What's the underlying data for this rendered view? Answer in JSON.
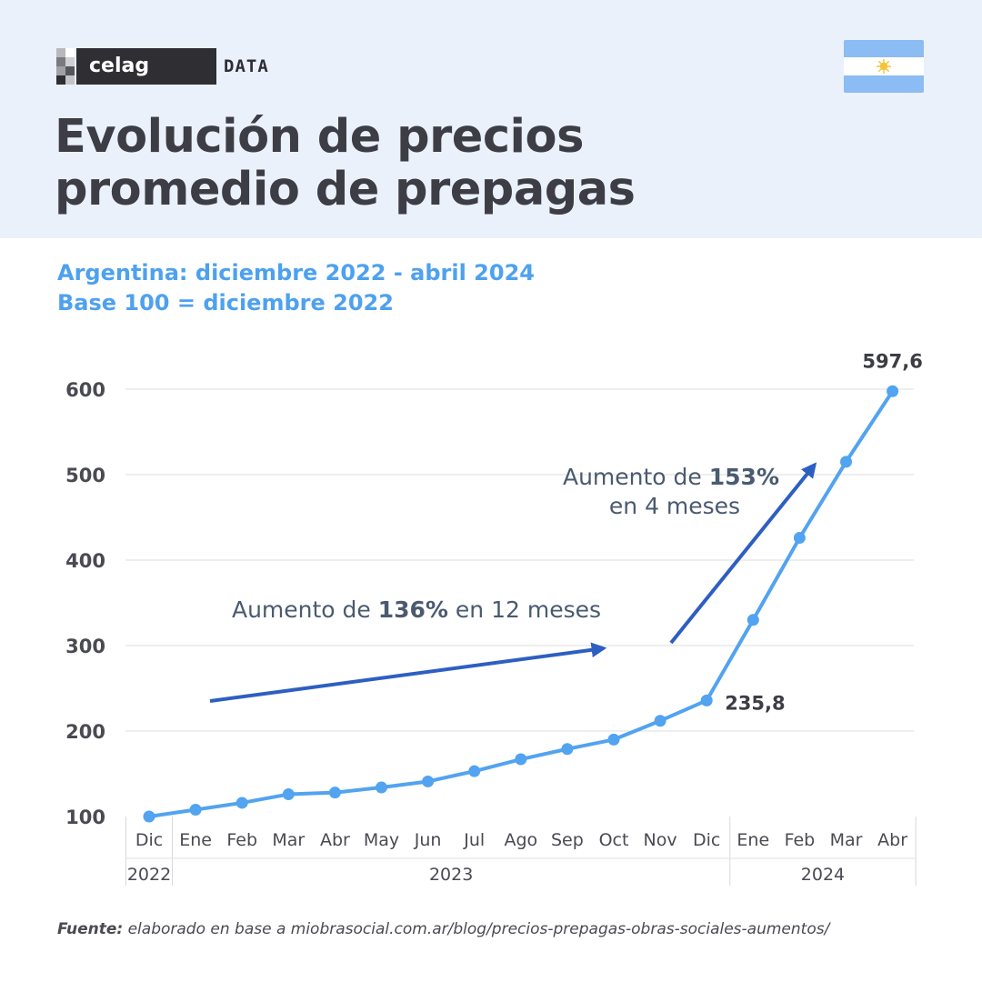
{
  "brand": {
    "logo_text": "celag",
    "logo_suffix": "DATA"
  },
  "header": {
    "title_line1": "Evolución de precios",
    "title_line2": "promedio de prepagas"
  },
  "subtitle": {
    "line1": "Argentina: diciembre 2022 - abril 2024",
    "line2": "Base 100 = diciembre 2022"
  },
  "colors": {
    "header_bg": "#eaf1fb",
    "line": "#52a3f0",
    "arrow": "#2d5fc2",
    "text_dark": "#3d3d45",
    "annotation": "#4a5a70"
  },
  "flag_icon": "argentina-flag-icon",
  "chart_data": {
    "type": "line",
    "title": "Evolución de precios promedio de prepagas",
    "subtitle": "Argentina: diciembre 2022 - abril 2024 · Base 100 = diciembre 2022",
    "categories": [
      "Dic",
      "Ene",
      "Feb",
      "Mar",
      "Abr",
      "May",
      "Jun",
      "Jul",
      "Ago",
      "Sep",
      "Oct",
      "Nov",
      "Dic",
      "Ene",
      "Feb",
      "Mar",
      "Abr"
    ],
    "year_groups": [
      {
        "label": "2022",
        "from": 0,
        "to": 0
      },
      {
        "label": "2023",
        "from": 1,
        "to": 12
      },
      {
        "label": "2024",
        "from": 13,
        "to": 16
      }
    ],
    "series": [
      {
        "values": [
          100,
          108,
          116,
          126,
          128,
          134,
          141,
          153,
          167,
          179,
          190,
          212,
          235.8,
          330,
          426,
          515,
          597.6
        ]
      }
    ],
    "ylim": [
      100,
      600
    ],
    "yticks": [
      "100",
      "200",
      "300",
      "400",
      "500",
      "600"
    ],
    "grid": true,
    "data_labels": [
      {
        "index": 12,
        "text": "235,8"
      },
      {
        "index": 16,
        "text": "597,6"
      }
    ],
    "annotations": [
      {
        "pre": "Aumento de ",
        "bold": "136%",
        "post": " en 12 meses"
      },
      {
        "pre": "Aumento de ",
        "bold": "153%",
        "line2": "en 4 meses"
      }
    ]
  },
  "source": {
    "label": "Fuente:",
    "text": " elaborado en base a miobrasocial.com.ar/blog/precios-prepagas-obras-sociales-aumentos/"
  }
}
